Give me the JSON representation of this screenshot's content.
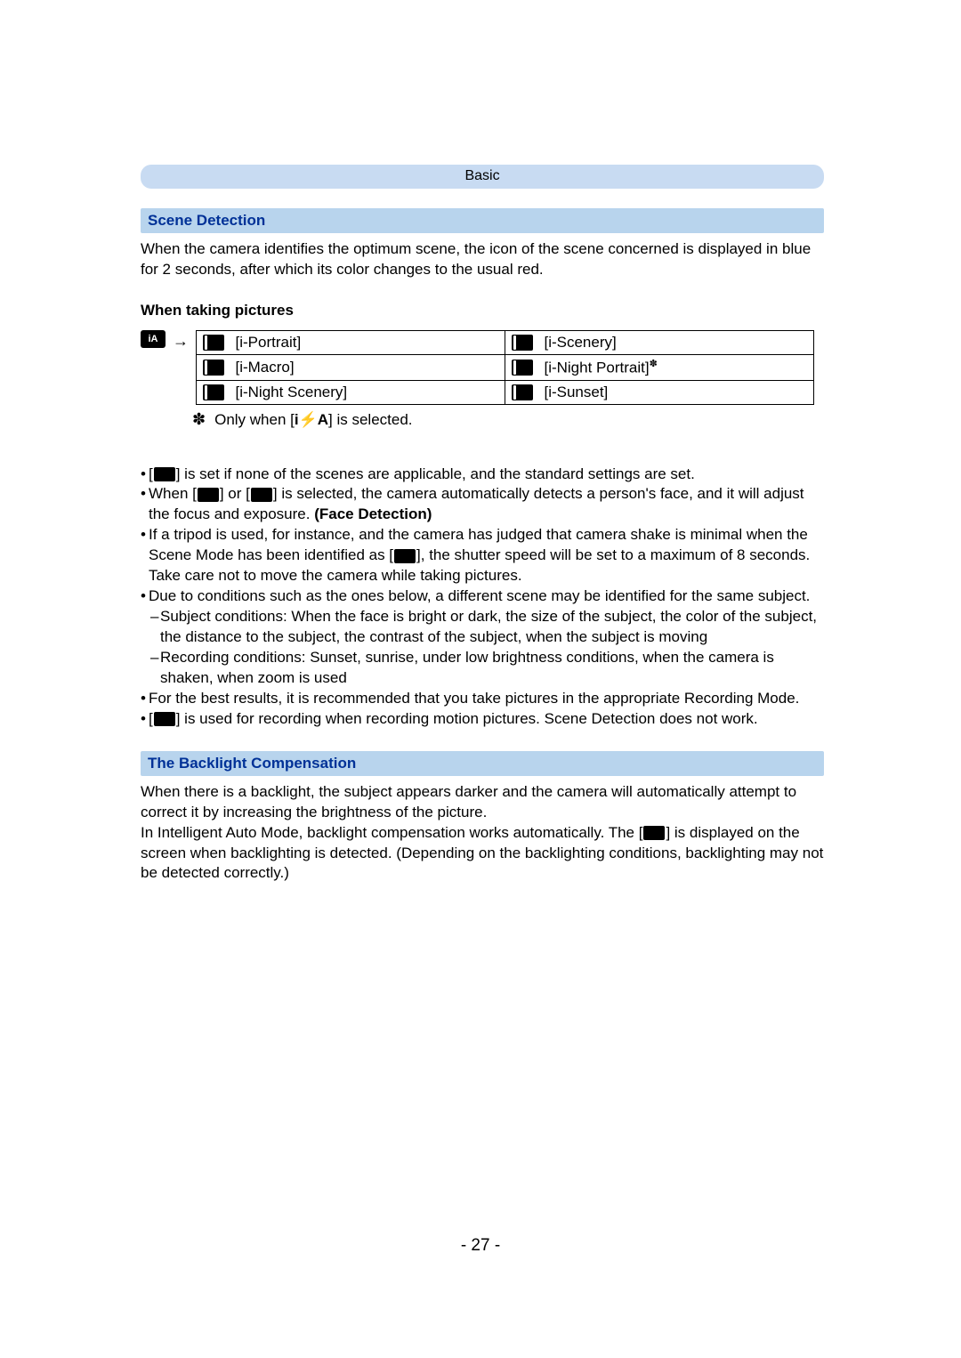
{
  "chapter": "Basic",
  "section1": {
    "title": "Scene Detection",
    "intro": "When the camera identifies the optimum scene, the icon of the scene concerned is displayed in blue for 2 seconds, after which its color changes to the usual red."
  },
  "pictures_subtitle": "When taking pictures",
  "scene_table": {
    "rows": [
      {
        "left": "[i-Portrait]",
        "right": "[i-Scenery]"
      },
      {
        "left": "[i-Macro]",
        "right": "[i-Night Portrait]"
      },
      {
        "left": "[i-Night Scenery]",
        "right": "[i-Sunset]"
      }
    ]
  },
  "table_footnote": {
    "star": "✽",
    "prefix": "Only when [",
    "code": "i⚡A",
    "suffix": "] is selected."
  },
  "bullets": {
    "b1_prefix": "[",
    "b1_suffix": "] is set if none of the scenes are applicable, and the standard settings are set.",
    "b2_prefix": "When [",
    "b2_mid": "] or [",
    "b2_rest": "] is selected, the camera automatically detects a person's face, and it will adjust the focus and exposure. ",
    "b2_bold": "(Face Detection)",
    "b3_prefix": "If a tripod is used, for instance, and the camera has judged that camera shake is minimal when the Scene Mode has been identified as [",
    "b3_suffix": "], the shutter speed will be set to a maximum of 8 seconds. Take care not to move the camera while taking pictures.",
    "b4": "Due to conditions such as the ones below, a different scene may be identified for the same subject.",
    "b4s1": "Subject conditions: When the face is bright or dark, the size of the subject, the color of the subject, the distance to the subject, the contrast of the subject, when the subject is moving",
    "b4s2": "Recording conditions: Sunset, sunrise, under low brightness conditions, when the camera is shaken, when zoom is used",
    "b5": "For the best results, it is recommended that you take pictures in the appropriate Recording Mode.",
    "b6_prefix": "[",
    "b6_suffix": "] is used for recording when recording motion pictures. Scene Detection does not work."
  },
  "section2": {
    "title": "The Backlight Compensation",
    "p1": "When there is a backlight, the subject appears darker and the camera will automatically attempt to correct it by increasing the brightness of the picture.",
    "p2_prefix": "In Intelligent Auto Mode, backlight compensation works automatically. The [",
    "p2_suffix": "] is displayed on the screen when backlighting is detected. (Depending on the backlighting conditions, backlighting may not be detected correctly.)"
  },
  "page_number": "- 27 -",
  "ia_label": "iA",
  "sup_marker": "✽"
}
